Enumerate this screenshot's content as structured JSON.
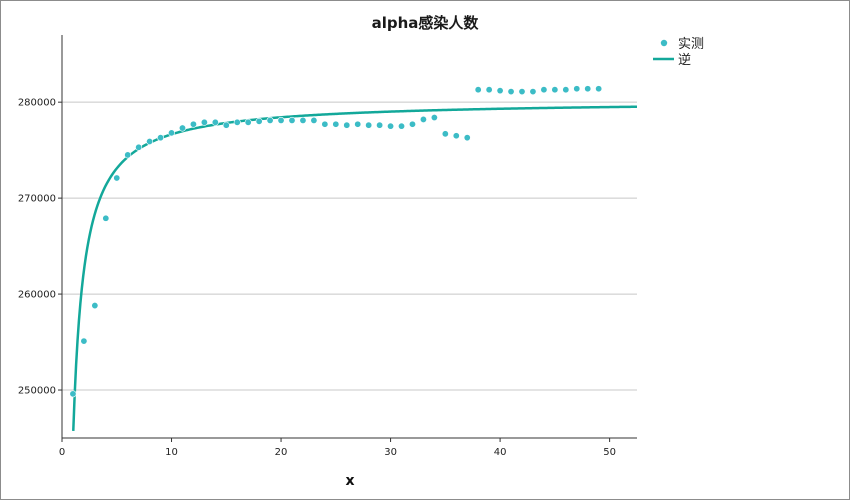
{
  "chart_data": {
    "type": "scatter",
    "title": "alpha感染人数",
    "xlabel": "x",
    "ylabel": "",
    "xlim": [
      0,
      52.5
    ],
    "ylim": [
      245000,
      287000
    ],
    "x_ticks": [
      0,
      10,
      20,
      30,
      40,
      50
    ],
    "y_ticks": [
      250000,
      260000,
      270000,
      280000
    ],
    "grid": "horizontal",
    "legend_position": "top-right",
    "colors": {
      "observed": "#3cbcc6",
      "fit": "#13a89a"
    },
    "series": [
      {
        "name": "实测",
        "kind": "scatter",
        "x": [
          1,
          2,
          3,
          4,
          5,
          6,
          7,
          8,
          9,
          10,
          11,
          12,
          13,
          14,
          15,
          16,
          17,
          18,
          19,
          20,
          21,
          22,
          23,
          24,
          25,
          26,
          27,
          28,
          29,
          30,
          31,
          32,
          33,
          34,
          35,
          36,
          37,
          38,
          39,
          40,
          41,
          42,
          43,
          44,
          45,
          46,
          47,
          48,
          49
        ],
        "y": [
          249600,
          255100,
          258800,
          267900,
          272100,
          274500,
          275300,
          275900,
          276300,
          276800,
          277300,
          277700,
          277900,
          277900,
          277600,
          277900,
          277900,
          278000,
          278100,
          278100,
          278100,
          278100,
          278100,
          277700,
          277700,
          277600,
          277700,
          277600,
          277600,
          277500,
          277500,
          277700,
          278200,
          278400,
          276700,
          276500,
          276300,
          281300,
          281300,
          281200,
          281100,
          281100,
          281100,
          281300,
          281300,
          281300,
          281400,
          281400,
          281400
        ]
      },
      {
        "name": "逆",
        "kind": "line",
        "model": "inverse",
        "b0": 280200,
        "b1": -35500,
        "x_range": [
          1.03,
          52.5
        ]
      }
    ]
  }
}
